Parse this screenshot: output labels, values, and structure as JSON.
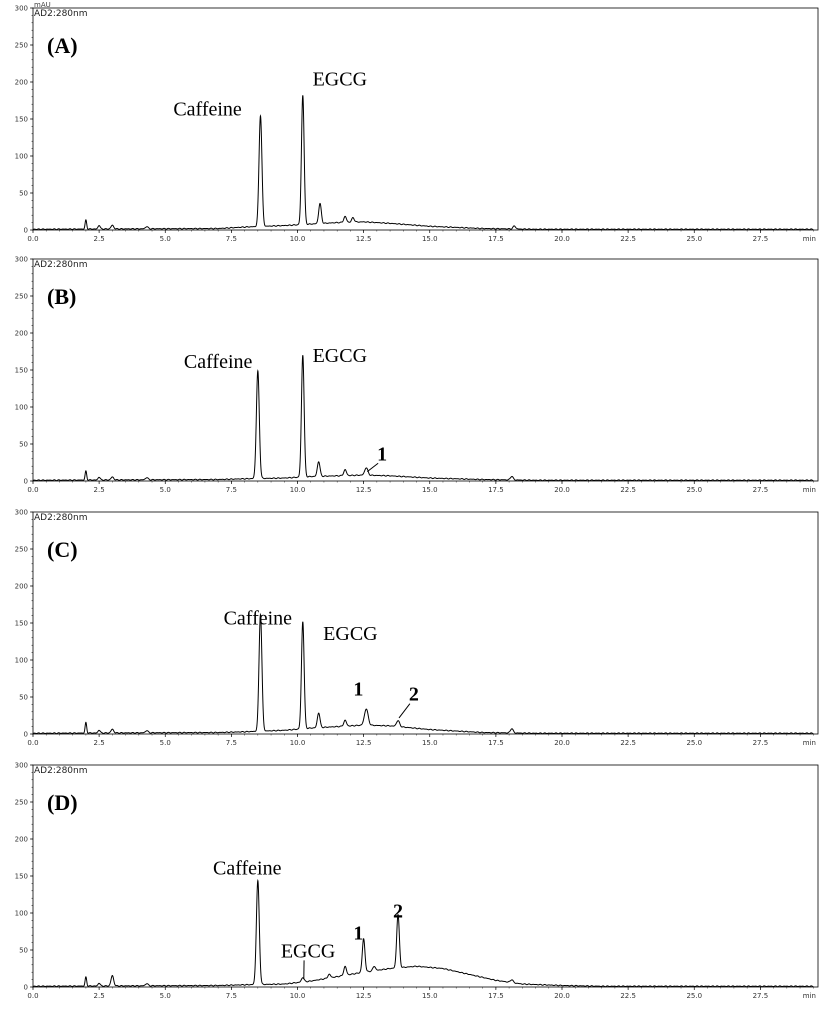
{
  "figure": {
    "colors": {
      "trace": "#000000",
      "axis": "#000000",
      "text": "#000000"
    }
  },
  "chart_data": [
    {
      "type": "line",
      "panel_label": "(A)",
      "channel": "AD2:280nm",
      "y_unit": "mAU",
      "xlabel": "min",
      "xlim": [
        0,
        30
      ],
      "ylim": [
        0,
        300
      ],
      "x_ticks": [
        "0.0",
        "2.5",
        "5.0",
        "7.5",
        "10.0",
        "12.5",
        "15.0",
        "17.5",
        "20.0",
        "22.5",
        "25.0",
        "27.5"
      ],
      "y_ticks": [
        "0",
        "50",
        "100",
        "150",
        "200",
        "250",
        "300"
      ],
      "baseline": [
        [
          0,
          1
        ],
        [
          7.0,
          2
        ],
        [
          8.0,
          4
        ],
        [
          9.5,
          6
        ],
        [
          10.5,
          8
        ],
        [
          11.5,
          10
        ],
        [
          12.5,
          11
        ],
        [
          13.5,
          9
        ],
        [
          15.0,
          5
        ],
        [
          17.0,
          2
        ],
        [
          19.0,
          1
        ],
        [
          29.5,
          1
        ]
      ],
      "peaks": [
        {
          "x": 2.0,
          "y": 12,
          "w": 0.03
        },
        {
          "x": 2.5,
          "y": 5,
          "w": 0.04
        },
        {
          "x": 3.0,
          "y": 5,
          "w": 0.05
        },
        {
          "x": 4.3,
          "y": 3,
          "w": 0.05
        },
        {
          "x": 8.6,
          "y": 150,
          "w": 0.055
        },
        {
          "x": 10.2,
          "y": 175,
          "w": 0.05
        },
        {
          "x": 10.85,
          "y": 27,
          "w": 0.05
        },
        {
          "x": 11.8,
          "y": 8,
          "w": 0.05
        },
        {
          "x": 12.1,
          "y": 6,
          "w": 0.05
        },
        {
          "x": 18.2,
          "y": 4,
          "w": 0.05
        }
      ],
      "annotations": [
        {
          "text": "Caffeine",
          "x": 8.6,
          "y": 150,
          "style": "name",
          "dx": -2.0,
          "dy": 5
        },
        {
          "text": "EGCG",
          "x": 10.2,
          "y": 175,
          "style": "name",
          "dx": 1.4,
          "dy": 20
        }
      ]
    },
    {
      "type": "line",
      "panel_label": "(B)",
      "channel": "AD2:280nm",
      "y_unit": "",
      "xlabel": "min",
      "xlim": [
        0,
        30
      ],
      "ylim": [
        0,
        300
      ],
      "x_ticks": [
        "0.0",
        "2.5",
        "5.0",
        "7.5",
        "10.0",
        "12.5",
        "15.0",
        "17.5",
        "20.0",
        "22.5",
        "25.0",
        "27.5"
      ],
      "y_ticks": [
        "0",
        "50",
        "100",
        "150",
        "200",
        "250",
        "300"
      ],
      "baseline": [
        [
          0,
          1
        ],
        [
          7.0,
          2
        ],
        [
          8.0,
          3
        ],
        [
          9.5,
          4
        ],
        [
          10.5,
          6
        ],
        [
          11.5,
          7
        ],
        [
          12.5,
          8
        ],
        [
          13.5,
          7
        ],
        [
          15.0,
          4
        ],
        [
          17.0,
          2
        ],
        [
          19.0,
          1
        ],
        [
          29.5,
          1
        ]
      ],
      "peaks": [
        {
          "x": 2.0,
          "y": 12,
          "w": 0.03
        },
        {
          "x": 2.5,
          "y": 4,
          "w": 0.04
        },
        {
          "x": 3.0,
          "y": 4,
          "w": 0.05
        },
        {
          "x": 4.3,
          "y": 3,
          "w": 0.05
        },
        {
          "x": 8.5,
          "y": 145,
          "w": 0.055
        },
        {
          "x": 10.2,
          "y": 165,
          "w": 0.05
        },
        {
          "x": 10.8,
          "y": 20,
          "w": 0.05
        },
        {
          "x": 11.8,
          "y": 8,
          "w": 0.05
        },
        {
          "x": 12.6,
          "y": 10,
          "w": 0.06
        },
        {
          "x": 18.1,
          "y": 5,
          "w": 0.05
        }
      ],
      "annotations": [
        {
          "text": "Caffeine",
          "x": 8.5,
          "y": 145,
          "style": "name",
          "dx": -1.5,
          "dy": 8
        },
        {
          "text": "EGCG",
          "x": 10.2,
          "y": 165,
          "style": "name",
          "dx": 1.4,
          "dy": -4
        },
        {
          "text": "1",
          "x": 12.6,
          "y": 10,
          "style": "num",
          "dx": 0.6,
          "dy": 18,
          "leader": true
        }
      ]
    },
    {
      "type": "line",
      "panel_label": "(C)",
      "channel": "AD2:280nm",
      "y_unit": "",
      "xlabel": "min",
      "xlim": [
        0,
        30
      ],
      "ylim": [
        0,
        300
      ],
      "x_ticks": [
        "0.0",
        "2.5",
        "5.0",
        "7.5",
        "10.0",
        "12.5",
        "15.0",
        "17.5",
        "20.0",
        "22.5",
        "25.0",
        "27.5"
      ],
      "y_ticks": [
        "0",
        "50",
        "100",
        "150",
        "200",
        "250",
        "300"
      ],
      "baseline": [
        [
          0,
          1
        ],
        [
          7.0,
          2
        ],
        [
          8.0,
          3
        ],
        [
          9.5,
          5
        ],
        [
          10.5,
          8
        ],
        [
          11.5,
          10
        ],
        [
          12.5,
          12
        ],
        [
          13.5,
          11
        ],
        [
          15.0,
          6
        ],
        [
          17.0,
          2
        ],
        [
          19.0,
          1
        ],
        [
          29.5,
          1
        ]
      ],
      "peaks": [
        {
          "x": 2.0,
          "y": 14,
          "w": 0.03
        },
        {
          "x": 2.5,
          "y": 4,
          "w": 0.04
        },
        {
          "x": 3.0,
          "y": 5,
          "w": 0.05
        },
        {
          "x": 4.3,
          "y": 3,
          "w": 0.05
        },
        {
          "x": 8.6,
          "y": 158,
          "w": 0.055
        },
        {
          "x": 10.2,
          "y": 145,
          "w": 0.05
        },
        {
          "x": 10.8,
          "y": 20,
          "w": 0.05
        },
        {
          "x": 11.8,
          "y": 8,
          "w": 0.05
        },
        {
          "x": 12.6,
          "y": 22,
          "w": 0.07
        },
        {
          "x": 13.8,
          "y": 8,
          "w": 0.06
        },
        {
          "x": 18.1,
          "y": 6,
          "w": 0.05
        }
      ],
      "annotations": [
        {
          "text": "Caffeine",
          "x": 8.6,
          "y": 158,
          "style": "name",
          "dx": -0.1,
          "dy": -10
        },
        {
          "text": "EGCG",
          "x": 10.2,
          "y": 145,
          "style": "name",
          "dx": 1.8,
          "dy": -18
        },
        {
          "text": "1",
          "x": 12.6,
          "y": 34,
          "style": "num",
          "dx": -0.3,
          "dy": 18
        },
        {
          "text": "2",
          "x": 13.8,
          "y": 19,
          "style": "num",
          "dx": 0.6,
          "dy": 26,
          "leader": true
        }
      ]
    },
    {
      "type": "line",
      "panel_label": "(D)",
      "channel": "AD2:280nm",
      "y_unit": "",
      "xlabel": "min",
      "xlim": [
        0,
        30
      ],
      "ylim": [
        0,
        300
      ],
      "x_ticks": [
        "0.0",
        "2.5",
        "5.0",
        "7.5",
        "10.0",
        "12.5",
        "15.0",
        "17.5",
        "20.0",
        "22.5",
        "25.0",
        "27.5"
      ],
      "y_ticks": [
        "0",
        "50",
        "100",
        "150",
        "200",
        "250",
        "300"
      ],
      "baseline": [
        [
          0,
          1
        ],
        [
          7.0,
          2
        ],
        [
          8.0,
          3
        ],
        [
          9.5,
          4
        ],
        [
          10.5,
          8
        ],
        [
          11.5,
          14
        ],
        [
          12.5,
          20
        ],
        [
          13.5,
          25
        ],
        [
          14.5,
          28
        ],
        [
          15.5,
          25
        ],
        [
          16.5,
          17
        ],
        [
          17.5,
          9
        ],
        [
          18.5,
          4
        ],
        [
          20.0,
          2
        ],
        [
          21.5,
          1
        ],
        [
          29.5,
          1
        ]
      ],
      "peaks": [
        {
          "x": 2.0,
          "y": 12,
          "w": 0.03
        },
        {
          "x": 2.5,
          "y": 4,
          "w": 0.04
        },
        {
          "x": 3.0,
          "y": 14,
          "w": 0.05
        },
        {
          "x": 4.3,
          "y": 3,
          "w": 0.05
        },
        {
          "x": 8.5,
          "y": 140,
          "w": 0.055
        },
        {
          "x": 10.2,
          "y": 6,
          "w": 0.05
        },
        {
          "x": 11.2,
          "y": 5,
          "w": 0.05
        },
        {
          "x": 11.8,
          "y": 12,
          "w": 0.05
        },
        {
          "x": 12.5,
          "y": 45,
          "w": 0.05
        },
        {
          "x": 12.9,
          "y": 6,
          "w": 0.05
        },
        {
          "x": 13.8,
          "y": 72,
          "w": 0.05
        },
        {
          "x": 18.1,
          "y": 4,
          "w": 0.05
        }
      ],
      "annotations": [
        {
          "text": "Caffeine",
          "x": 8.5,
          "y": 140,
          "style": "name",
          "dx": -0.4,
          "dy": 12
        },
        {
          "text": "EGCG",
          "x": 10.2,
          "y": 8,
          "style": "name",
          "dx": 0.2,
          "dy": 32,
          "leader": true
        },
        {
          "text": "1",
          "x": 12.5,
          "y": 50,
          "style": "num",
          "dx": -0.2,
          "dy": 14
        },
        {
          "text": "2",
          "x": 13.8,
          "y": 80,
          "style": "num",
          "dx": 0.0,
          "dy": 14
        }
      ]
    }
  ]
}
